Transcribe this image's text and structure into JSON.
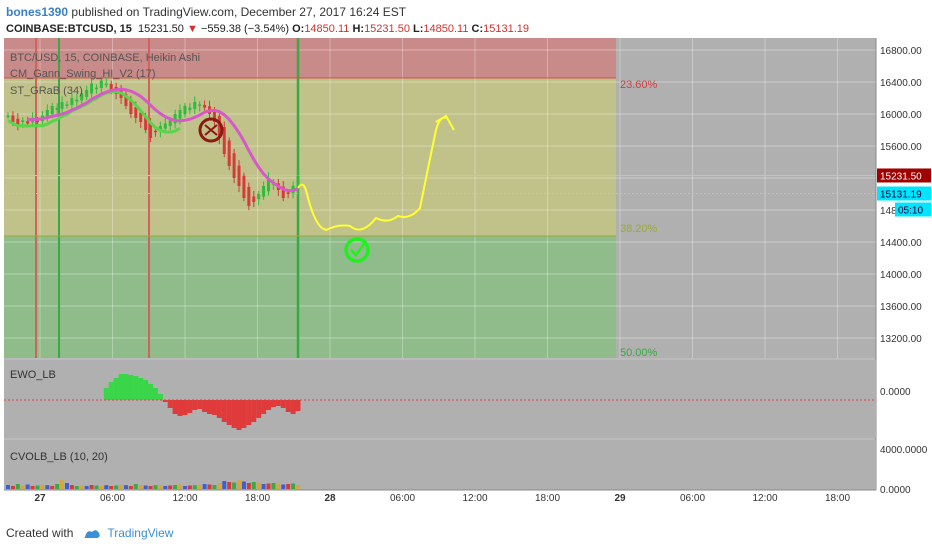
{
  "header": {
    "author": "bones1390",
    "published_text": "published on TradingView.com, December 27, 2017 16:24 EST",
    "symbol": "COINBASE:BTCUSD, 15",
    "last": "15231.50",
    "change": "−559.38 (−3.54%)",
    "o_label": "O:",
    "o": "14850.11",
    "h_label": "H:",
    "h": "15231.50",
    "l_label": "L:",
    "l": "14850.11",
    "c_label": "C:",
    "c": "15131.19"
  },
  "footer": {
    "created_with": "Created with",
    "brand": "TradingView"
  },
  "colors": {
    "panel_bg": "#b0b0b0",
    "fib_red": "#c98a8a",
    "fib_olive": "#c0c28a",
    "fib_green": "#8fbc8a",
    "candle_up": "#2bbd3a",
    "candle_down": "#d63a3a",
    "gann_line": "#57d64a",
    "grab_line": "#d659c9",
    "projection": "#ffff33",
    "price_marker": "#a00000",
    "price_marker2": "#00e5ff"
  },
  "chart_data": [
    {
      "type": "candlestick",
      "title": "BTC/USD, 15, COINBASE, Heikin Ashi",
      "indicators": [
        "CM_Gann_Swing_HI_V2 (17)",
        "ST_GRaB (34)"
      ],
      "x_tick_labels": [
        "27",
        "06:00",
        "12:00",
        "18:00",
        "28",
        "06:00",
        "12:00",
        "18:00",
        "29",
        "06:00",
        "12:00",
        "18:00"
      ],
      "y_tick_labels": [
        "16800.00",
        "16400.00",
        "16000.00",
        "15600.00",
        "15200.00",
        "14800.00",
        "14400.00",
        "14000.00",
        "13600.00",
        "13200.00"
      ],
      "ylim": [
        12950,
        16950
      ],
      "fib_levels": [
        {
          "label": "23.60%",
          "value": 16560
        },
        {
          "label": "38.20%",
          "value": 14480
        },
        {
          "label": "50.00%",
          "value": 12950
        }
      ],
      "price_labels": [
        {
          "label": "15231.50",
          "value": 15231.5
        },
        {
          "label": "15131.19",
          "value": 15131.19
        },
        {
          "label": "05:10",
          "value": 14900
        }
      ],
      "close_prices": [
        15980,
        15900,
        15860,
        15920,
        15880,
        15950,
        15900,
        15980,
        16050,
        16100,
        16080,
        16150,
        16120,
        16200,
        16180,
        16260,
        16300,
        16380,
        16330,
        16420,
        16380,
        16300,
        16250,
        16200,
        16100,
        16000,
        15950,
        15900,
        15800,
        15700,
        15780,
        15850,
        15880,
        15920,
        16000,
        16050,
        16100,
        16080,
        16150,
        16120,
        16080,
        16000,
        15900,
        15700,
        15500,
        15350,
        15200,
        15100,
        14950,
        14850,
        14900,
        15000,
        15100,
        15200,
        15150,
        15050,
        14950,
        15000,
        15100,
        15231
      ]
    },
    {
      "type": "bar",
      "title": "EWO_LB",
      "y_tick_labels": [
        "0.0000"
      ],
      "values": [
        0,
        0,
        0,
        0,
        0,
        0,
        0,
        0,
        0,
        0,
        0,
        0,
        0,
        0,
        0,
        0,
        0,
        0,
        0,
        0,
        120,
        180,
        220,
        260,
        260,
        250,
        240,
        220,
        200,
        160,
        120,
        60,
        -20,
        -80,
        -140,
        -160,
        -150,
        -130,
        -100,
        -90,
        -120,
        -140,
        -150,
        -180,
        -220,
        -250,
        -280,
        -300,
        -280,
        -250,
        -220,
        -180,
        -140,
        -100,
        -70,
        -60,
        -80,
        -120,
        -140,
        -110
      ]
    },
    {
      "type": "bar",
      "title": "CVOLB_LB (10, 20)",
      "y_tick_labels": [
        "4000.0000",
        "0.0000"
      ],
      "values": [
        400,
        300,
        500,
        350,
        450,
        300,
        350,
        420,
        380,
        300,
        500,
        900,
        600,
        400,
        300,
        350,
        300,
        400,
        350,
        300,
        380,
        300,
        350,
        420,
        380,
        300,
        500,
        400,
        350,
        300,
        380,
        420,
        300,
        350,
        400,
        450,
        300,
        350,
        380,
        420,
        500,
        450,
        400,
        600,
        800,
        700,
        650,
        900,
        750,
        600,
        700,
        650,
        500,
        550,
        600,
        500,
        450,
        500,
        550,
        400
      ]
    }
  ]
}
